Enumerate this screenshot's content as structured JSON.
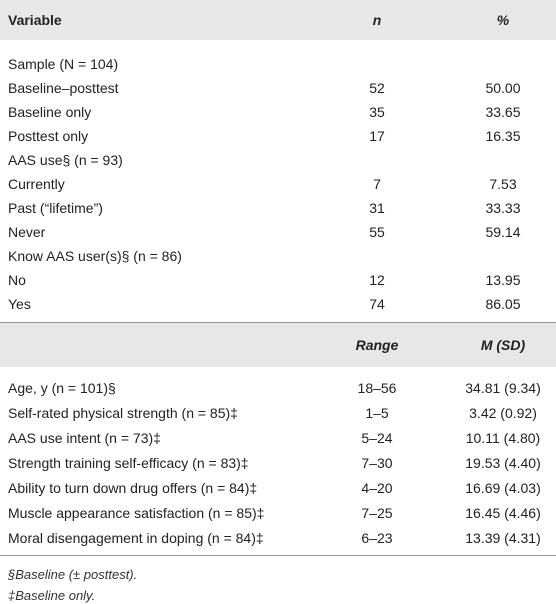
{
  "table1": {
    "header": [
      "Variable",
      "n",
      "%"
    ],
    "rows": [
      [
        "Sample (N = 104)"
      ],
      [
        "Baseline–posttest",
        "52",
        "50.00"
      ],
      [
        "Baseline only",
        "35",
        "33.65"
      ],
      [
        "Posttest only",
        "17",
        "16.35"
      ],
      [
        "AAS use§ (n = 93)"
      ],
      [
        "Currently",
        "7",
        "7.53"
      ],
      [
        "Past (“lifetime”)",
        "31",
        "33.33"
      ],
      [
        "Never",
        "55",
        "59.14"
      ],
      [
        "Know AAS user(s)§ (n = 86)"
      ],
      [
        "No",
        "12",
        "13.95"
      ],
      [
        "Yes",
        "74",
        "86.05"
      ]
    ]
  },
  "table2": {
    "header": [
      "Range",
      "M (SD)"
    ],
    "rows": [
      [
        "Age, y (n = 101)§",
        "18–56",
        "34.81 (9.34)"
      ],
      [
        "Self-rated physical strength (n = 85)‡",
        "1–5",
        "3.42 (0.92)"
      ],
      [
        "AAS use intent (n = 73)‡",
        "5–24",
        "10.11 (4.80)"
      ],
      [
        "Strength training self-efficacy (n = 83)‡",
        "7–30",
        "19.53 (4.40)"
      ],
      [
        "Ability to turn down drug offers (n = 84)‡",
        "4–20",
        "16.69 (4.03)"
      ],
      [
        "Muscle appearance satisfaction (n = 85)‡",
        "7–25",
        "16.45 (4.46)"
      ],
      [
        "Moral disengagement in doping (n = 84)‡",
        "6–23",
        "13.39 (4.31)"
      ]
    ]
  },
  "footnotes": [
    "§Baseline (± posttest).",
    "‡Baseline only."
  ]
}
